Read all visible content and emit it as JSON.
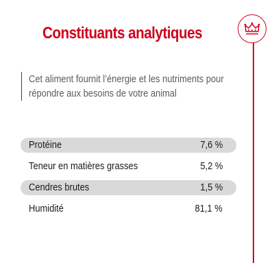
{
  "title": "Constituants analytiques",
  "intro": {
    "line1": "Cet aliment fournit l’énergie et les nutriments pour",
    "line2": "répondre aux besoins de votre animal"
  },
  "rows": [
    {
      "label": "Protéine",
      "value": "7,6 %"
    },
    {
      "label": "Teneur en matières grasses",
      "value": "5,2 %"
    },
    {
      "label": "Cendres brutes",
      "value": "1,5 %"
    },
    {
      "label": "Humidité",
      "value": "81,1 %"
    }
  ],
  "colors": {
    "brand": "#d0021b",
    "row_shade": "#d9d9d9",
    "text": "#1a1a1a",
    "intro_text": "#5a5a5a"
  },
  "icons": {
    "brand_badge": "crown-icon"
  }
}
